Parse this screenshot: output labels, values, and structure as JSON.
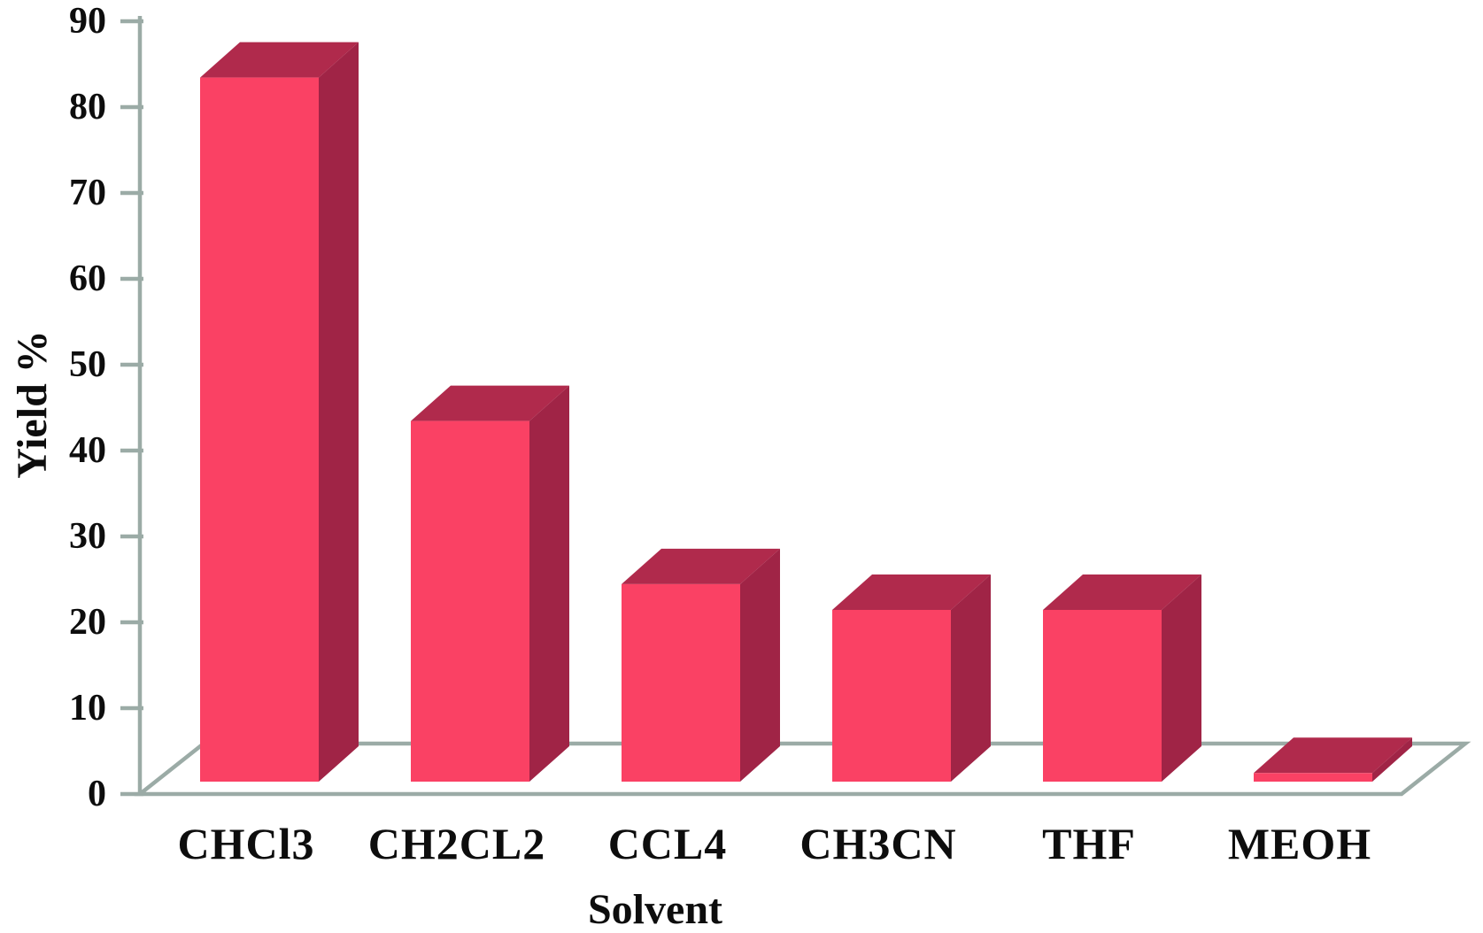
{
  "chart_data": {
    "type": "bar",
    "projection": "3d",
    "title": "",
    "xlabel": "Solvent",
    "ylabel": "Yield %",
    "categories": [
      "CHCl3",
      "CH2CL2",
      "CCL4",
      "CH3CN",
      "THF",
      "MEOH"
    ],
    "values": [
      82,
      42,
      23,
      20,
      20,
      1
    ],
    "ylim": [
      0,
      90
    ],
    "yticks": [
      0,
      10,
      20,
      30,
      40,
      50,
      60,
      70,
      80,
      90
    ],
    "grid": false,
    "legend_position": "none",
    "colors": {
      "bar_front": "#FA4164",
      "bar_side": "#A02446",
      "bar_top": "#B02A4C",
      "axis": "#9BABA6",
      "text": "#0D0D0D",
      "background": "#FFFFFF"
    }
  }
}
